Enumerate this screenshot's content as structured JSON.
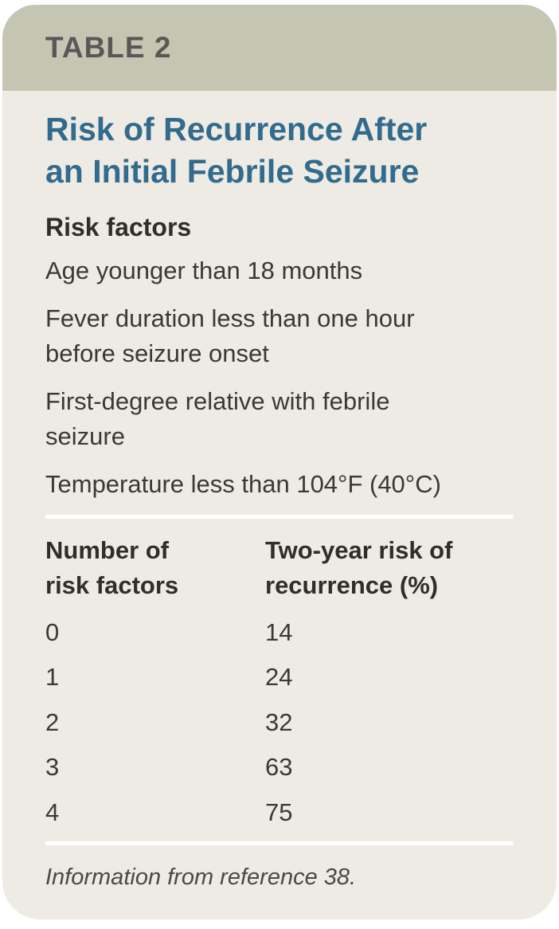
{
  "header": {
    "label": "TABLE 2"
  },
  "title": "Risk of Recurrence After an Initial Febrile Seizure",
  "risk_factors": {
    "heading": "Risk factors",
    "items": [
      "Age younger than 18 months",
      "Fever duration less than one hour before seizure onset",
      "First-degree relative with febrile seizure",
      "Temperature less than 104°F (40°C)"
    ]
  },
  "table": {
    "columns": [
      "Number of risk factors",
      "Two-year risk of recurrence (%)"
    ],
    "rows": [
      [
        "0",
        "14"
      ],
      [
        "1",
        "24"
      ],
      [
        "2",
        "32"
      ],
      [
        "3",
        "63"
      ],
      [
        "4",
        "75"
      ]
    ]
  },
  "footnote": "Information from reference 38.",
  "colors": {
    "band_bg": "#c5c6b2",
    "band_text": "#5d5656",
    "body_bg": "#edebe4",
    "title_text": "#336b8d",
    "body_text": "#3a3936",
    "divider": "#ffffff"
  },
  "chart_data": {
    "type": "table",
    "title": "Risk of Recurrence After an Initial Febrile Seizure",
    "columns": [
      "Number of risk factors",
      "Two-year risk of recurrence (%)"
    ],
    "rows": [
      [
        0,
        14
      ],
      [
        1,
        24
      ],
      [
        2,
        32
      ],
      [
        3,
        63
      ],
      [
        4,
        75
      ]
    ],
    "source_note": "Information from reference 38."
  }
}
